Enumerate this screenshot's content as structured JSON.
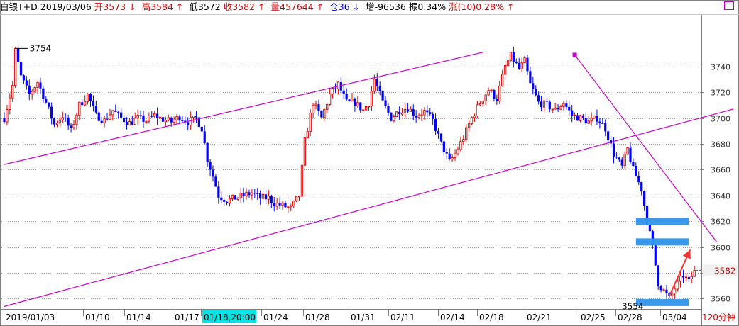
{
  "header": {
    "symbol": "白银T+D",
    "date": "2019/03/06",
    "open": "开3573",
    "open_arrow": "↓",
    "high": "高3584",
    "high_arrow": "↑",
    "low": "低3572",
    "close": "收3582",
    "close_arrow": "↑",
    "volume": "量457644",
    "volume_arrow": "↑",
    "position": "仓36",
    "position_arrow": "↓",
    "increase": "增-96536",
    "amplitude": "振0.34%",
    "change": "涨(10)0.28%",
    "change_arrow": "↑"
  },
  "chart_data": {
    "type": "candlestick",
    "ylim": [
      3552,
      3780
    ],
    "y_ticks": [
      3560,
      3580,
      3600,
      3620,
      3640,
      3660,
      3680,
      3700,
      3720,
      3740
    ],
    "x_labels": [
      "2019/01/03",
      "01/10",
      "01/14",
      "01/17",
      "01/18,20:00",
      "01/24",
      "01/28",
      "01/31",
      "02/11",
      "02/14",
      "02/18",
      "02/21",
      "02/25",
      "02/28",
      "03/04"
    ],
    "highlight_x_label": "01/18,20:00",
    "period": "120分钟",
    "current_price": "3582",
    "max_label": "3754",
    "min_label": "3554",
    "anchors": [
      [
        0,
        3700
      ],
      [
        3,
        3725
      ],
      [
        4,
        3752
      ],
      [
        6,
        3732
      ],
      [
        9,
        3718
      ],
      [
        12,
        3728
      ],
      [
        15,
        3712
      ],
      [
        18,
        3695
      ],
      [
        21,
        3702
      ],
      [
        24,
        3690
      ],
      [
        27,
        3710
      ],
      [
        30,
        3718
      ],
      [
        33,
        3702
      ],
      [
        36,
        3698
      ],
      [
        39,
        3706
      ],
      [
        42,
        3700
      ],
      [
        45,
        3696
      ],
      [
        48,
        3700
      ],
      [
        51,
        3698
      ],
      [
        54,
        3702
      ],
      [
        57,
        3699
      ],
      [
        60,
        3697
      ],
      [
        63,
        3701
      ],
      [
        66,
        3697
      ],
      [
        69,
        3700
      ],
      [
        71,
        3692
      ],
      [
        73,
        3668
      ],
      [
        75,
        3655
      ],
      [
        77,
        3640
      ],
      [
        80,
        3636
      ],
      [
        83,
        3638
      ],
      [
        86,
        3640
      ],
      [
        89,
        3642
      ],
      [
        92,
        3638
      ],
      [
        95,
        3638
      ],
      [
        97,
        3634
      ],
      [
        100,
        3632
      ],
      [
        103,
        3630
      ],
      [
        106,
        3640
      ],
      [
        108,
        3682
      ],
      [
        111,
        3712
      ],
      [
        114,
        3700
      ],
      [
        117,
        3718
      ],
      [
        120,
        3726
      ],
      [
        123,
        3712
      ],
      [
        126,
        3712
      ],
      [
        129,
        3706
      ],
      [
        131,
        3712
      ],
      [
        133,
        3730
      ],
      [
        136,
        3712
      ],
      [
        139,
        3700
      ],
      [
        142,
        3706
      ],
      [
        145,
        3708
      ],
      [
        148,
        3702
      ],
      [
        151,
        3705
      ],
      [
        154,
        3698
      ],
      [
        157,
        3680
      ],
      [
        160,
        3666
      ],
      [
        162,
        3672
      ],
      [
        165,
        3685
      ],
      [
        168,
        3700
      ],
      [
        171,
        3712
      ],
      [
        174,
        3722
      ],
      [
        177,
        3715
      ],
      [
        180,
        3740
      ],
      [
        182,
        3748
      ],
      [
        185,
        3738
      ],
      [
        187,
        3744
      ],
      [
        189,
        3726
      ],
      [
        192,
        3712
      ],
      [
        195,
        3710
      ],
      [
        198,
        3706
      ],
      [
        201,
        3712
      ],
      [
        204,
        3702
      ],
      [
        207,
        3700
      ],
      [
        210,
        3697
      ],
      [
        213,
        3700
      ],
      [
        216,
        3692
      ],
      [
        219,
        3672
      ],
      [
        222,
        3662
      ],
      [
        224,
        3676
      ],
      [
        226,
        3660
      ],
      [
        229,
        3645
      ],
      [
        231,
        3620
      ],
      [
        233,
        3600
      ],
      [
        235,
        3572
      ],
      [
        237,
        3566
      ],
      [
        239,
        3560
      ],
      [
        241,
        3568
      ],
      [
        244,
        3578
      ],
      [
        246,
        3573
      ],
      [
        248,
        3582
      ]
    ],
    "trendlines": [
      {
        "name": "channel-upper",
        "from": [
          0,
          3664
        ],
        "to": [
          172,
          3751
        ]
      },
      {
        "name": "channel-lower",
        "from": [
          0,
          3554
        ],
        "to": [
          262,
          3707
        ]
      },
      {
        "name": "resistance-line",
        "from": [
          205,
          3749
        ],
        "to": [
          256,
          3604
        ]
      }
    ],
    "zones": [
      3620,
      3604,
      3557
    ]
  },
  "colors": {
    "up": "#e00000",
    "down": "#0000ff",
    "trend": "#d000d0",
    "zone": "#2f95e8",
    "grid": "#9a9a9a",
    "arrow": "#ff3030",
    "highlight_bg": "#00e5e5"
  }
}
